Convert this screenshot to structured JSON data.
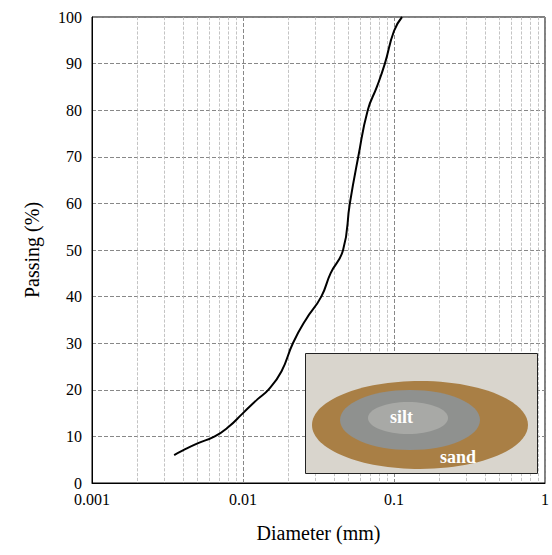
{
  "chart_data": {
    "type": "line",
    "x_label": "Diameter (mm)",
    "y_label": "Passing (%)",
    "x": [
      0.0035,
      0.004,
      0.005,
      0.0065,
      0.008,
      0.01,
      0.0125,
      0.0147,
      0.018,
      0.0214,
      0.026,
      0.033,
      0.038,
      0.046,
      0.051,
      0.058,
      0.067,
      0.077,
      0.087,
      0.1,
      0.113
    ],
    "values": [
      6,
      7,
      8.5,
      10,
      12,
      15,
      18,
      20,
      24,
      30,
      35,
      40,
      45,
      50,
      60,
      70,
      80,
      85,
      90,
      97,
      100
    ],
    "color": "#000000",
    "log": "x",
    "xlim": [
      0.001,
      1
    ],
    "xticks": [
      0.001,
      0.01,
      0.1,
      1
    ],
    "ylim": [
      0,
      100
    ],
    "yticks": [
      0,
      10,
      20,
      30,
      40,
      50,
      60,
      70,
      80,
      90,
      100
    ],
    "grid": true,
    "annotations": [
      "silt",
      "sand"
    ]
  }
}
